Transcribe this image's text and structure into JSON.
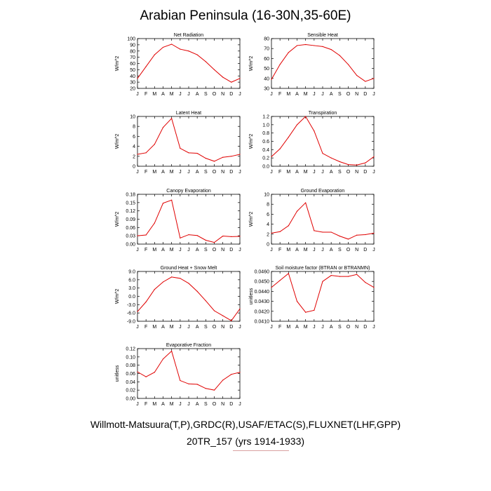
{
  "title": "Arabian Peninsula (16-30N,35-60E)",
  "footer": {
    "sources": "Willmott-Matsuura(T,P),GRDC(R),USAF/ETAC(S),FLUXNET(LHF,GPP)",
    "run": "20TR_157 (yrs 1914-1933)"
  },
  "series_color": "#e00000",
  "chart_data": [
    {
      "type": "line",
      "title": "Net Radiation",
      "xlabel": "",
      "ylabel": "W/m^2",
      "x": [
        "J",
        "F",
        "M",
        "A",
        "M",
        "J",
        "J",
        "A",
        "S",
        "O",
        "N",
        "D",
        "J"
      ],
      "ylim": [
        20,
        100
      ],
      "yticks": [
        "20",
        "30",
        "40",
        "50",
        "60",
        "70",
        "80",
        "90",
        "100"
      ],
      "values": [
        36,
        55,
        74,
        86,
        91,
        83,
        80,
        74,
        63,
        50,
        38,
        30,
        36
      ]
    },
    {
      "type": "line",
      "title": "Sensible Heat",
      "xlabel": "",
      "ylabel": "W/m^2",
      "x": [
        "J",
        "F",
        "M",
        "A",
        "M",
        "J",
        "J",
        "A",
        "S",
        "O",
        "N",
        "D",
        "J"
      ],
      "ylim": [
        30,
        80
      ],
      "yticks": [
        "30",
        "40",
        "50",
        "60",
        "70",
        "80"
      ],
      "values": [
        39,
        54,
        66,
        73,
        74,
        73,
        72,
        69,
        63,
        54,
        43,
        37,
        40
      ]
    },
    {
      "type": "line",
      "title": "Latent Heat",
      "xlabel": "",
      "ylabel": "W/m^2",
      "x": [
        "J",
        "F",
        "M",
        "A",
        "M",
        "J",
        "J",
        "A",
        "S",
        "O",
        "N",
        "D",
        "J"
      ],
      "ylim": [
        0,
        10
      ],
      "yticks": [
        "0",
        "2",
        "4",
        "6",
        "8",
        "10"
      ],
      "values": [
        2.4,
        2.7,
        4.4,
        7.8,
        9.6,
        3.6,
        2.7,
        2.6,
        1.6,
        1.0,
        1.8,
        2.0,
        2.4
      ]
    },
    {
      "type": "line",
      "title": "Transpiration",
      "xlabel": "",
      "ylabel": "W/m^2",
      "x": [
        "J",
        "F",
        "M",
        "A",
        "M",
        "J",
        "J",
        "A",
        "S",
        "O",
        "N",
        "D",
        "J"
      ],
      "ylim": [
        0,
        1.2
      ],
      "yticks": [
        "0.0",
        "0.2",
        "0.4",
        "0.6",
        "0.8",
        "1.0",
        "1.2"
      ],
      "values": [
        0.23,
        0.42,
        0.7,
        1.0,
        1.2,
        0.85,
        0.31,
        0.2,
        0.11,
        0.04,
        0.03,
        0.08,
        0.23
      ]
    },
    {
      "type": "line",
      "title": "Canopy Evaporation",
      "xlabel": "",
      "ylabel": "W/m^2",
      "x": [
        "J",
        "F",
        "M",
        "A",
        "M",
        "J",
        "J",
        "A",
        "S",
        "O",
        "N",
        "D",
        "J"
      ],
      "ylim": [
        0,
        0.18
      ],
      "yticks": [
        "0.00",
        "0.03",
        "0.06",
        "0.09",
        "0.12",
        "0.15",
        "0.18"
      ],
      "values": [
        0.03,
        0.033,
        0.076,
        0.148,
        0.159,
        0.022,
        0.034,
        0.031,
        0.014,
        0.006,
        0.029,
        0.027,
        0.028
      ]
    },
    {
      "type": "line",
      "title": "Ground Evaporation",
      "xlabel": "",
      "ylabel": "W/m^2",
      "x": [
        "J",
        "F",
        "M",
        "A",
        "M",
        "J",
        "J",
        "A",
        "S",
        "O",
        "N",
        "D",
        "J"
      ],
      "ylim": [
        0,
        10
      ],
      "yticks": [
        "0",
        "2",
        "4",
        "6",
        "8",
        "10"
      ],
      "values": [
        2.2,
        2.5,
        3.7,
        6.6,
        8.3,
        2.7,
        2.4,
        2.4,
        1.6,
        1.0,
        1.8,
        1.9,
        2.2
      ]
    },
    {
      "type": "line",
      "title": "Ground Heat + Snow Melt",
      "xlabel": "",
      "ylabel": "W/m^2",
      "x": [
        "J",
        "F",
        "M",
        "A",
        "M",
        "J",
        "J",
        "A",
        "S",
        "O",
        "N",
        "D",
        "J"
      ],
      "ylim": [
        -9,
        9
      ],
      "yticks": [
        "-9.0",
        "-6.0",
        "-3.0",
        "0.0",
        "3.0",
        "6.0",
        "9.0"
      ],
      "values": [
        -5.5,
        -2.0,
        2.5,
        5.2,
        7.0,
        6.5,
        4.7,
        1.8,
        -1.6,
        -5.2,
        -7.0,
        -8.8,
        -4.5
      ]
    },
    {
      "type": "line",
      "title": "Soil moisture factor (BTRAN or BTRANMN)",
      "xlabel": "",
      "ylabel": "unitless",
      "x": [
        "J",
        "F",
        "M",
        "A",
        "M",
        "J",
        "J",
        "A",
        "S",
        "O",
        "N",
        "D",
        "J"
      ],
      "ylim": [
        0.041,
        0.046
      ],
      "yticks": [
        "0.0410",
        "0.0420",
        "0.0430",
        "0.0440",
        "0.0450",
        "0.0460"
      ],
      "values": [
        0.0444,
        0.0451,
        0.0458,
        0.043,
        0.0419,
        0.0421,
        0.045,
        0.0456,
        0.0455,
        0.0455,
        0.0457,
        0.0449,
        0.0444
      ]
    },
    {
      "type": "line",
      "title": "Evaporative Fraction",
      "xlabel": "",
      "ylabel": "unitless",
      "x": [
        "J",
        "F",
        "M",
        "A",
        "M",
        "J",
        "J",
        "A",
        "S",
        "O",
        "N",
        "D",
        "J"
      ],
      "ylim": [
        0,
        0.12
      ],
      "yticks": [
        "0.00",
        "0.02",
        "0.04",
        "0.06",
        "0.08",
        "0.10",
        "0.12"
      ],
      "values": [
        0.064,
        0.052,
        0.063,
        0.095,
        0.114,
        0.043,
        0.035,
        0.034,
        0.024,
        0.02,
        0.044,
        0.058,
        0.063
      ]
    }
  ]
}
